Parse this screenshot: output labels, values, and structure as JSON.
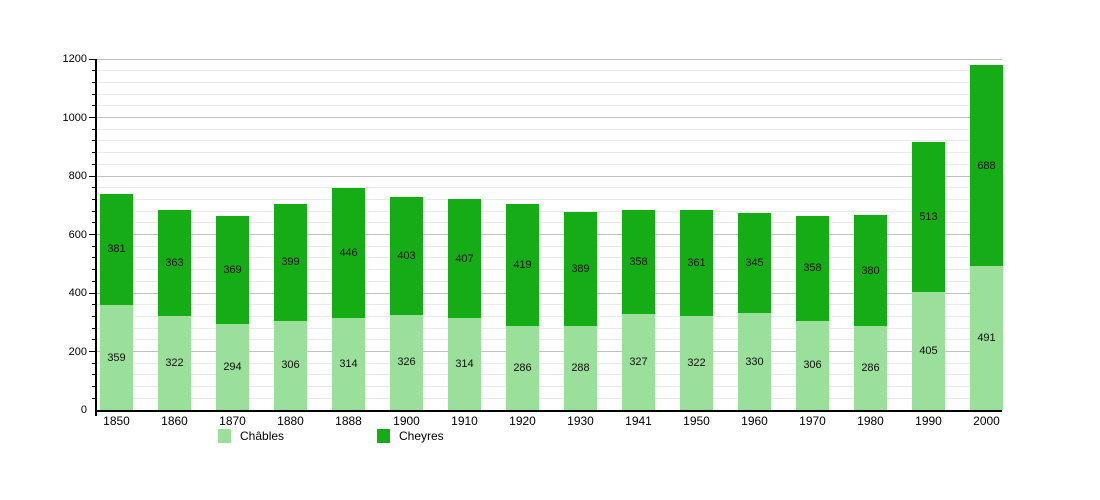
{
  "chart_data": {
    "type": "bar",
    "stacked": true,
    "title": "",
    "categories": [
      "1850",
      "1860",
      "1870",
      "1880",
      "1888",
      "1900",
      "1910",
      "1920",
      "1930",
      "1941",
      "1950",
      "1960",
      "1970",
      "1980",
      "1990",
      "2000"
    ],
    "series": [
      {
        "name": "Châbles",
        "color": "#9ADF9A",
        "values": [
          359,
          322,
          294,
          306,
          314,
          326,
          314,
          286,
          288,
          327,
          322,
          330,
          306,
          286,
          405,
          491
        ]
      },
      {
        "name": "Cheyres",
        "color": "#16AC16",
        "values": [
          381,
          363,
          369,
          399,
          446,
          403,
          407,
          419,
          389,
          358,
          361,
          345,
          358,
          380,
          513,
          688
        ]
      }
    ],
    "ylim": [
      0,
      1200
    ],
    "y_major_step": 200,
    "y_minor_step": 40,
    "y_tick_labels": [
      "0",
      "200",
      "400",
      "600",
      "800",
      "1000",
      "1200"
    ],
    "grid": "on",
    "legend_position": "bottom",
    "bar_value_labels": "inside-center",
    "background_color": "#FFFFFF",
    "axis_color": "#000000",
    "grid_major_color": "#C2C2C2",
    "grid_minor_color": "#EAEAEA",
    "value_label_color": "#101010"
  },
  "legend": {
    "items": [
      {
        "label": "Châbles",
        "color": "#9ADF9A"
      },
      {
        "label": "Cheyres",
        "color": "#16AC16"
      }
    ]
  }
}
